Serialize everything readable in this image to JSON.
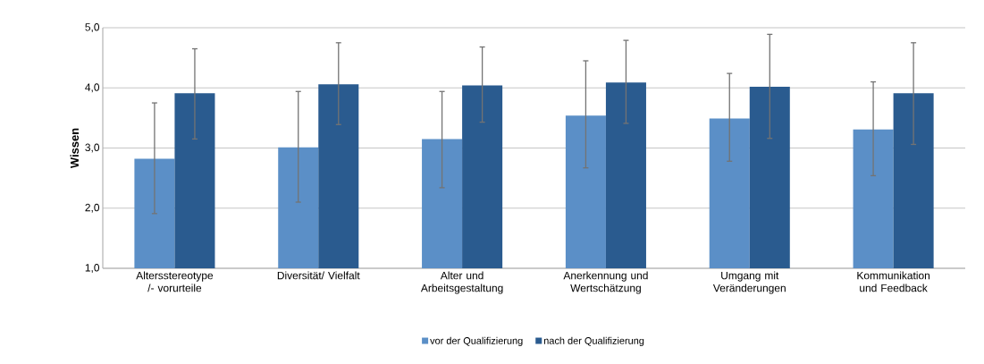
{
  "chart_data": {
    "type": "bar",
    "ylabel": "Wissen",
    "categories": [
      "Altersstereotype /- vorurteile",
      "Diversität/ Vielfalt",
      "Alter und Arbeitsgestaltung",
      "Anerkennung und Wertschätzung",
      "Umgang mit Veränderungen",
      "Kommunikation und Feedback"
    ],
    "series": [
      {
        "name": "vor der Qualifizierung",
        "color": "#5b8fc7",
        "values": [
          2.82,
          3.01,
          3.15,
          3.54,
          3.49,
          3.31
        ],
        "errors": [
          [
            1.91,
            3.75
          ],
          [
            2.1,
            3.94
          ],
          [
            2.34,
            3.94
          ],
          [
            2.67,
            4.45
          ],
          [
            2.78,
            4.24
          ],
          [
            2.54,
            4.1
          ]
        ]
      },
      {
        "name": "nach der Qualifizierung",
        "color": "#2a5b8f",
        "values": [
          3.91,
          4.06,
          4.04,
          4.09,
          4.02,
          3.91
        ],
        "errors": [
          [
            3.15,
            4.65
          ],
          [
            3.39,
            4.75
          ],
          [
            3.43,
            4.68
          ],
          [
            3.41,
            4.79
          ],
          [
            3.16,
            4.89
          ],
          [
            3.06,
            4.75
          ]
        ]
      }
    ],
    "ylim": [
      1,
      5
    ],
    "yticks": [
      {
        "value": 1,
        "label": "1,0"
      },
      {
        "value": 2,
        "label": "2,0"
      },
      {
        "value": 3,
        "label": "3,0"
      },
      {
        "value": 4,
        "label": "4,0"
      },
      {
        "value": 5,
        "label": "5,0"
      }
    ],
    "grid": "y",
    "legend": "bottom"
  }
}
